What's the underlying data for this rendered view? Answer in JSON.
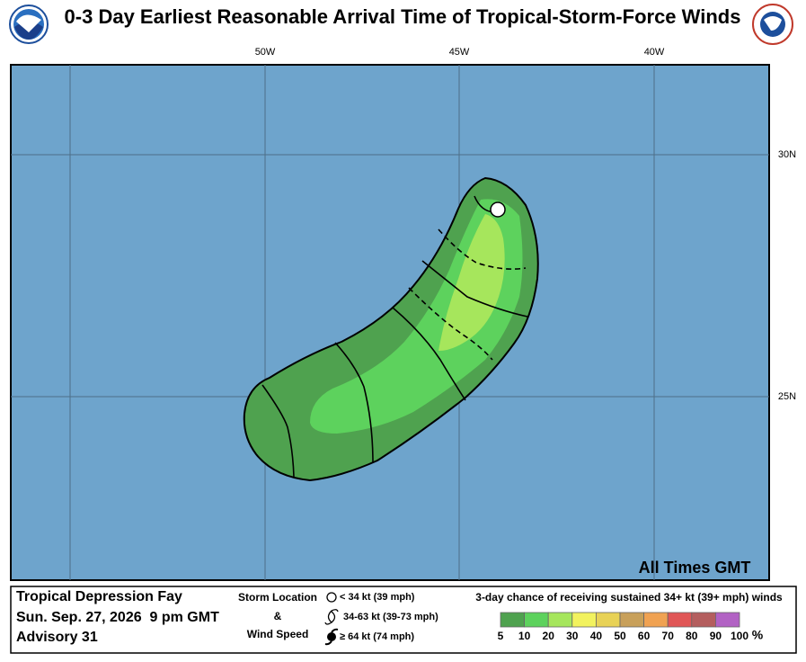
{
  "header": {
    "title": "0-3 Day Earliest Reasonable Arrival Time of Tropical-Storm-Force Winds"
  },
  "map": {
    "longitude_labels": [
      "50W",
      "45W",
      "40W"
    ],
    "latitude_labels": [
      "30N",
      "25N"
    ],
    "note": "All Times GMT"
  },
  "footer": {
    "storm": {
      "name": "Tropical Depression Fay",
      "date": "Sun. Sep. 27, 2026  9 pm GMT",
      "advisory": "Advisory 31"
    },
    "symbol_legend": {
      "title_lines": [
        "Storm Location",
        "&",
        "Wind Speed"
      ],
      "items": [
        "< 34 kt (39 mph)",
        "34-63 kt (39-73 mph)",
        "≥ 64 kt (74 mph)"
      ]
    },
    "probability_legend": {
      "title": "3-day chance of receiving sustained 34+ kt (39+ mph) winds",
      "colors": [
        "#4fa24f",
        "#5dd25d",
        "#a6e65c",
        "#f2f25e",
        "#e8d256",
        "#c8a05a",
        "#f0a252",
        "#e05656",
        "#b45e5e",
        "#b262c4"
      ],
      "ticks": [
        5,
        10,
        20,
        30,
        40,
        50,
        60,
        70,
        80,
        90,
        100
      ],
      "unit": "%"
    }
  }
}
